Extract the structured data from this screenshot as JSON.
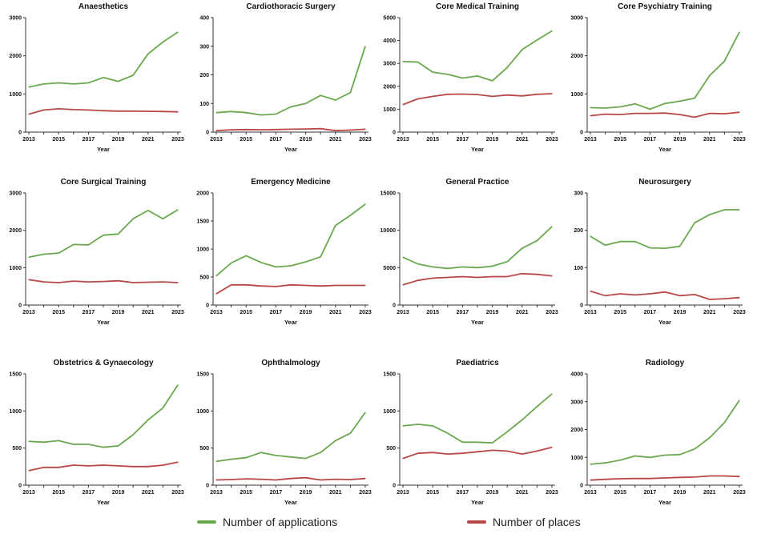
{
  "colors": {
    "applications": "#6aa84f",
    "places": "#b84848",
    "axis": "#333333"
  },
  "legend": {
    "applications": "Number of applications",
    "places": "Number of places"
  },
  "chart_data": [
    {
      "type": "line",
      "title": "Anaesthetics",
      "xlabel": "Year",
      "x": [
        2013,
        2014,
        2015,
        2016,
        2017,
        2018,
        2019,
        2020,
        2021,
        2022,
        2023
      ],
      "xticks": [
        2013,
        2015,
        2017,
        2019,
        2021,
        2023
      ],
      "ylim": [
        0,
        3000
      ],
      "yticks": [
        0,
        1000,
        2000,
        3000
      ],
      "series": [
        {
          "name": "Number of applications",
          "values": [
            1180,
            1260,
            1290,
            1260,
            1290,
            1430,
            1330,
            1490,
            2050,
            2360,
            2620
          ]
        },
        {
          "name": "Number of places",
          "values": [
            470,
            580,
            610,
            590,
            580,
            560,
            550,
            550,
            545,
            540,
            530
          ]
        }
      ]
    },
    {
      "type": "line",
      "title": "Cardiothoracic Surgery",
      "xlabel": "Year",
      "x": [
        2013,
        2014,
        2015,
        2016,
        2017,
        2018,
        2019,
        2020,
        2021,
        2022,
        2023
      ],
      "xticks": [
        2013,
        2015,
        2017,
        2019,
        2021,
        2023
      ],
      "ylim": [
        0,
        400
      ],
      "yticks": [
        0,
        100,
        200,
        300,
        400
      ],
      "series": [
        {
          "name": "Number of applications",
          "values": [
            68,
            72,
            68,
            60,
            63,
            88,
            100,
            128,
            112,
            138,
            300
          ]
        },
        {
          "name": "Number of places",
          "values": [
            5,
            8,
            9,
            8,
            9,
            10,
            11,
            12,
            5,
            7,
            10
          ]
        }
      ]
    },
    {
      "type": "line",
      "title": "Core Medical Training",
      "xlabel": "Year",
      "x": [
        2013,
        2014,
        2015,
        2016,
        2017,
        2018,
        2019,
        2020,
        2021,
        2022,
        2023
      ],
      "xticks": [
        2013,
        2015,
        2017,
        2019,
        2021,
        2023
      ],
      "ylim": [
        0,
        5000
      ],
      "yticks": [
        0,
        1000,
        2000,
        3000,
        4000,
        5000
      ],
      "series": [
        {
          "name": "Number of applications",
          "values": [
            3080,
            3060,
            2620,
            2520,
            2360,
            2450,
            2240,
            2820,
            3600,
            4020,
            4420
          ]
        },
        {
          "name": "Number of places",
          "values": [
            1200,
            1450,
            1560,
            1650,
            1660,
            1640,
            1560,
            1620,
            1580,
            1650,
            1680
          ]
        }
      ]
    },
    {
      "type": "line",
      "title": "Core Psychiatry Training",
      "xlabel": "Year",
      "x": [
        2013,
        2014,
        2015,
        2016,
        2017,
        2018,
        2019,
        2020,
        2021,
        2022,
        2023
      ],
      "xticks": [
        2013,
        2015,
        2017,
        2019,
        2021,
        2023
      ],
      "ylim": [
        0,
        3000
      ],
      "yticks": [
        0,
        1000,
        2000,
        3000
      ],
      "series": [
        {
          "name": "Number of applications",
          "values": [
            640,
            630,
            660,
            740,
            600,
            750,
            810,
            890,
            1480,
            1860,
            2620
          ]
        },
        {
          "name": "Number of places",
          "values": [
            430,
            470,
            460,
            490,
            490,
            500,
            460,
            390,
            490,
            480,
            520
          ]
        }
      ]
    },
    {
      "type": "line",
      "title": "Core Surgical Training",
      "xlabel": "Year",
      "x": [
        2013,
        2014,
        2015,
        2016,
        2017,
        2018,
        2019,
        2020,
        2021,
        2022,
        2023
      ],
      "xticks": [
        2013,
        2015,
        2017,
        2019,
        2021,
        2023
      ],
      "ylim": [
        0,
        3000
      ],
      "yticks": [
        0,
        1000,
        2000,
        3000
      ],
      "series": [
        {
          "name": "Number of applications",
          "values": [
            1280,
            1360,
            1390,
            1620,
            1610,
            1870,
            1900,
            2310,
            2530,
            2310,
            2550
          ]
        },
        {
          "name": "Number of places",
          "values": [
            680,
            620,
            600,
            640,
            620,
            630,
            650,
            600,
            610,
            620,
            600
          ]
        }
      ]
    },
    {
      "type": "line",
      "title": "Emergency Medicine",
      "xlabel": "Year",
      "x": [
        2013,
        2014,
        2015,
        2016,
        2017,
        2018,
        2019,
        2020,
        2021,
        2022,
        2023
      ],
      "xticks": [
        2013,
        2015,
        2017,
        2019,
        2021,
        2023
      ],
      "ylim": [
        0,
        2000
      ],
      "yticks": [
        0,
        500,
        1000,
        1500,
        2000
      ],
      "series": [
        {
          "name": "Number of applications",
          "values": [
            520,
            750,
            880,
            760,
            680,
            700,
            770,
            860,
            1420,
            1600,
            1800
          ]
        },
        {
          "name": "Number of places",
          "values": [
            200,
            360,
            360,
            340,
            330,
            360,
            350,
            340,
            350,
            350,
            350
          ]
        }
      ]
    },
    {
      "type": "line",
      "title": "General Practice",
      "xlabel": "Year",
      "x": [
        2013,
        2014,
        2015,
        2016,
        2017,
        2018,
        2019,
        2020,
        2021,
        2022,
        2023
      ],
      "xticks": [
        2013,
        2015,
        2017,
        2019,
        2021,
        2023
      ],
      "ylim": [
        0,
        15000
      ],
      "yticks": [
        0,
        5000,
        10000,
        15000
      ],
      "series": [
        {
          "name": "Number of applications",
          "values": [
            6400,
            5500,
            5100,
            4900,
            5100,
            5000,
            5200,
            5800,
            7600,
            8600,
            10500
          ]
        },
        {
          "name": "Number of places",
          "values": [
            2700,
            3300,
            3600,
            3700,
            3800,
            3700,
            3800,
            3800,
            4200,
            4100,
            3900
          ]
        }
      ]
    },
    {
      "type": "line",
      "title": "Neurosurgery",
      "xlabel": "Year",
      "x": [
        2013,
        2014,
        2015,
        2016,
        2017,
        2018,
        2019,
        2020,
        2021,
        2022,
        2023
      ],
      "xticks": [
        2013,
        2015,
        2017,
        2019,
        2021,
        2023
      ],
      "ylim": [
        0,
        300
      ],
      "yticks": [
        0,
        100,
        200,
        300
      ],
      "series": [
        {
          "name": "Number of applications",
          "values": [
            184,
            160,
            170,
            170,
            153,
            152,
            157,
            220,
            242,
            255,
            255
          ]
        },
        {
          "name": "Number of places",
          "values": [
            37,
            25,
            30,
            27,
            30,
            35,
            25,
            28,
            15,
            17,
            20
          ]
        }
      ]
    },
    {
      "type": "line",
      "title": "Obstetrics & Gynaecology",
      "xlabel": "Year",
      "x": [
        2013,
        2014,
        2015,
        2016,
        2017,
        2018,
        2019,
        2020,
        2021,
        2022,
        2023
      ],
      "xticks": [
        2013,
        2015,
        2017,
        2019,
        2021,
        2023
      ],
      "ylim": [
        0,
        1500
      ],
      "yticks": [
        0,
        500,
        1000,
        1500
      ],
      "series": [
        {
          "name": "Number of applications",
          "values": [
            590,
            580,
            600,
            550,
            550,
            510,
            530,
            680,
            880,
            1040,
            1350
          ]
        },
        {
          "name": "Number of places",
          "values": [
            195,
            240,
            240,
            270,
            260,
            270,
            260,
            250,
            250,
            270,
            310
          ]
        }
      ]
    },
    {
      "type": "line",
      "title": "Ophthalmology",
      "xlabel": "Year",
      "x": [
        2013,
        2014,
        2015,
        2016,
        2017,
        2018,
        2019,
        2020,
        2021,
        2022,
        2023
      ],
      "xticks": [
        2013,
        2015,
        2017,
        2019,
        2021,
        2023
      ],
      "ylim": [
        0,
        1500
      ],
      "yticks": [
        0,
        500,
        1000,
        1500
      ],
      "series": [
        {
          "name": "Number of applications",
          "values": [
            320,
            350,
            370,
            440,
            400,
            380,
            360,
            440,
            600,
            700,
            980
          ]
        },
        {
          "name": "Number of places",
          "values": [
            70,
            75,
            85,
            80,
            70,
            90,
            100,
            70,
            80,
            75,
            90
          ]
        }
      ]
    },
    {
      "type": "line",
      "title": "Paediatrics",
      "xlabel": "Year",
      "x": [
        2013,
        2014,
        2015,
        2016,
        2017,
        2018,
        2019,
        2020,
        2021,
        2022,
        2023
      ],
      "xticks": [
        2013,
        2015,
        2017,
        2019,
        2021,
        2023
      ],
      "ylim": [
        0,
        1500
      ],
      "yticks": [
        0,
        500,
        1000,
        1500
      ],
      "series": [
        {
          "name": "Number of applications",
          "values": [
            800,
            820,
            800,
            700,
            580,
            580,
            570,
            720,
            880,
            1060,
            1230
          ]
        },
        {
          "name": "Number of places",
          "values": [
            360,
            430,
            440,
            420,
            430,
            450,
            470,
            460,
            420,
            460,
            510
          ]
        }
      ]
    },
    {
      "type": "line",
      "title": "Radiology",
      "xlabel": "Year",
      "x": [
        2013,
        2014,
        2015,
        2016,
        2017,
        2018,
        2019,
        2020,
        2021,
        2022,
        2023
      ],
      "xticks": [
        2013,
        2015,
        2017,
        2019,
        2021,
        2023
      ],
      "ylim": [
        0,
        4000
      ],
      "yticks": [
        0,
        1000,
        2000,
        3000,
        4000
      ],
      "series": [
        {
          "name": "Number of applications",
          "values": [
            750,
            800,
            900,
            1050,
            1000,
            1080,
            1100,
            1300,
            1700,
            2250,
            3050
          ]
        },
        {
          "name": "Number of places",
          "values": [
            180,
            210,
            230,
            240,
            240,
            260,
            280,
            290,
            330,
            330,
            310
          ]
        }
      ]
    }
  ]
}
